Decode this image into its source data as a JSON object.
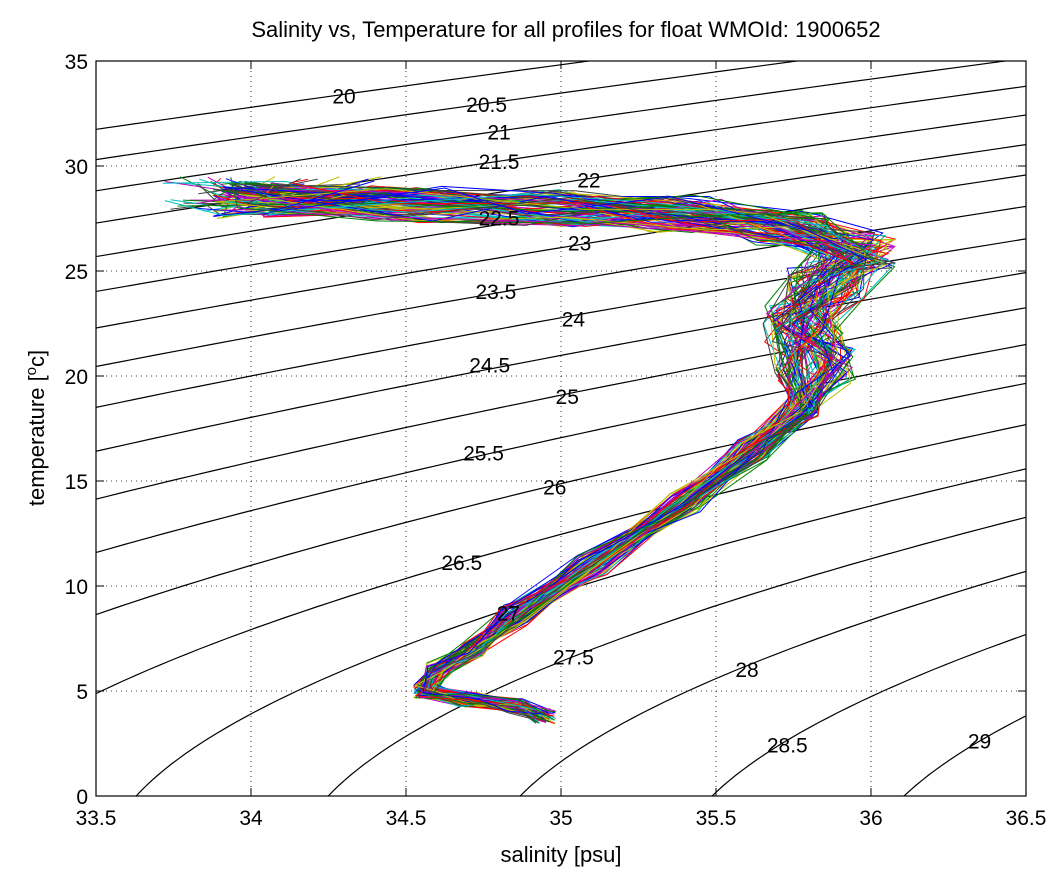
{
  "chart_data": {
    "type": "line",
    "title": "Salinity vs, Temperature for all profiles for float WMOId: 1900652",
    "xlabel": "salinity [psu]",
    "ylabel_text": "temperature [",
    "ylabel_sup": "o",
    "ylabel_unit": "c]",
    "xlim": [
      33.5,
      36.5
    ],
    "ylim": [
      0,
      35
    ],
    "xticks": [
      "33.5",
      "34",
      "34.5",
      "35",
      "35.5",
      "36",
      "36.5"
    ],
    "yticks": [
      "0",
      "5",
      "10",
      "15",
      "20",
      "25",
      "30",
      "35"
    ],
    "grid": true,
    "density_contours": [
      {
        "label": "20",
        "label_at": [
          34.3,
          33.3
        ]
      },
      {
        "label": "20.5",
        "label_at": [
          34.76,
          32.9
        ]
      },
      {
        "label": "21",
        "label_at": [
          34.8,
          31.6
        ]
      },
      {
        "label": "21.5",
        "label_at": [
          34.8,
          30.2
        ]
      },
      {
        "label": "22",
        "label_at": [
          35.09,
          29.3
        ]
      },
      {
        "label": "22.5",
        "label_at": [
          34.8,
          27.5
        ]
      },
      {
        "label": "23",
        "label_at": [
          35.06,
          26.3
        ]
      },
      {
        "label": "23.5",
        "label_at": [
          34.79,
          24.0
        ]
      },
      {
        "label": "24",
        "label_at": [
          35.04,
          22.7
        ]
      },
      {
        "label": "24.5",
        "label_at": [
          34.77,
          20.5
        ]
      },
      {
        "label": "25",
        "label_at": [
          35.02,
          19.0
        ]
      },
      {
        "label": "25.5",
        "label_at": [
          34.75,
          16.3
        ]
      },
      {
        "label": "26",
        "label_at": [
          34.98,
          14.7
        ]
      },
      {
        "label": "26.5",
        "label_at": [
          34.68,
          11.1
        ]
      },
      {
        "label": "27",
        "label_at": [
          34.83,
          8.7
        ]
      },
      {
        "label": "27.5",
        "label_at": [
          35.04,
          6.6
        ]
      },
      {
        "label": "28",
        "label_at": [
          35.6,
          6.0
        ]
      },
      {
        "label": "28.5",
        "label_at": [
          35.73,
          2.4
        ]
      },
      {
        "label": "29",
        "label_at": [
          36.35,
          2.6
        ]
      }
    ],
    "profile_path": [
      [
        34.95,
        3.8
      ],
      [
        34.85,
        4.3
      ],
      [
        34.7,
        4.6
      ],
      [
        34.56,
        5.0
      ],
      [
        34.6,
        6.0
      ],
      [
        34.72,
        7.0
      ],
      [
        34.85,
        8.6
      ],
      [
        35.1,
        11.0
      ],
      [
        35.4,
        14.0
      ],
      [
        35.62,
        16.5
      ],
      [
        35.78,
        18.5
      ],
      [
        35.82,
        20.5
      ],
      [
        35.78,
        22.5
      ],
      [
        35.85,
        24.5
      ],
      [
        35.95,
        26.0
      ],
      [
        35.75,
        27.0
      ],
      [
        35.4,
        27.7
      ],
      [
        35.0,
        28.0
      ],
      [
        34.5,
        28.2
      ],
      [
        34.0,
        28.4
      ],
      [
        33.7,
        28.6
      ]
    ],
    "profile_count": 100,
    "series_colors": [
      "#0000ff",
      "#008000",
      "#ff0000",
      "#00bfbf",
      "#bf00bf",
      "#bfbf00",
      "#404040"
    ],
    "contour_color": "#000000"
  }
}
